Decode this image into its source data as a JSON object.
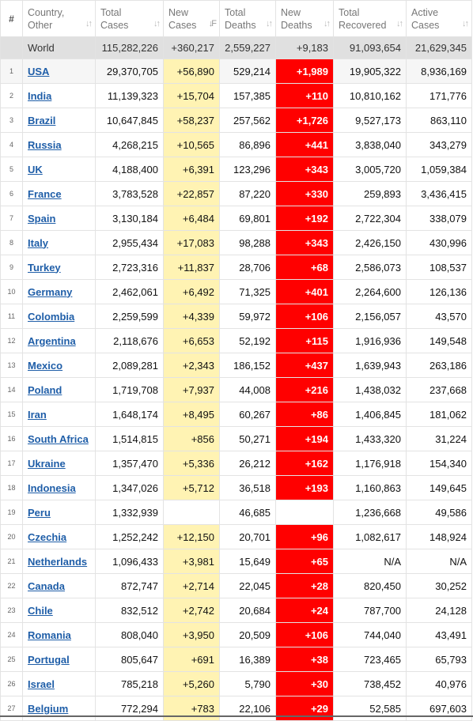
{
  "headers": {
    "hash": "#",
    "country": [
      "Country,",
      "Other"
    ],
    "total_cases": [
      "Total",
      "Cases"
    ],
    "new_cases": [
      "New",
      "Cases"
    ],
    "total_deaths": [
      "Total",
      "Deaths"
    ],
    "new_deaths": [
      "New",
      "Deaths"
    ],
    "total_recovered": [
      "Total",
      "Recovered"
    ],
    "active_cases": [
      "Active",
      "Cases"
    ]
  },
  "sort_icons": {
    "default": "↓↑",
    "active": "↓F"
  },
  "world": {
    "country": "World",
    "total_cases": "115,282,226",
    "new_cases": "+360,217",
    "total_deaths": "2,559,227",
    "new_deaths": "+9,183",
    "total_recovered": "91,093,654",
    "active_cases": "21,629,345"
  },
  "rows": [
    {
      "rank": "1",
      "country": "USA",
      "total_cases": "29,370,705",
      "new_cases": "+56,890",
      "total_deaths": "529,214",
      "new_deaths": "+1,989",
      "total_recovered": "19,905,322",
      "active_cases": "8,936,169"
    },
    {
      "rank": "2",
      "country": "India",
      "total_cases": "11,139,323",
      "new_cases": "+15,704",
      "total_deaths": "157,385",
      "new_deaths": "+110",
      "total_recovered": "10,810,162",
      "active_cases": "171,776"
    },
    {
      "rank": "3",
      "country": "Brazil",
      "total_cases": "10,647,845",
      "new_cases": "+58,237",
      "total_deaths": "257,562",
      "new_deaths": "+1,726",
      "total_recovered": "9,527,173",
      "active_cases": "863,110"
    },
    {
      "rank": "4",
      "country": "Russia",
      "total_cases": "4,268,215",
      "new_cases": "+10,565",
      "total_deaths": "86,896",
      "new_deaths": "+441",
      "total_recovered": "3,838,040",
      "active_cases": "343,279"
    },
    {
      "rank": "5",
      "country": "UK",
      "total_cases": "4,188,400",
      "new_cases": "+6,391",
      "total_deaths": "123,296",
      "new_deaths": "+343",
      "total_recovered": "3,005,720",
      "active_cases": "1,059,384"
    },
    {
      "rank": "6",
      "country": "France",
      "total_cases": "3,783,528",
      "new_cases": "+22,857",
      "total_deaths": "87,220",
      "new_deaths": "+330",
      "total_recovered": "259,893",
      "active_cases": "3,436,415"
    },
    {
      "rank": "7",
      "country": "Spain",
      "total_cases": "3,130,184",
      "new_cases": "+6,484",
      "total_deaths": "69,801",
      "new_deaths": "+192",
      "total_recovered": "2,722,304",
      "active_cases": "338,079"
    },
    {
      "rank": "8",
      "country": "Italy",
      "total_cases": "2,955,434",
      "new_cases": "+17,083",
      "total_deaths": "98,288",
      "new_deaths": "+343",
      "total_recovered": "2,426,150",
      "active_cases": "430,996"
    },
    {
      "rank": "9",
      "country": "Turkey",
      "total_cases": "2,723,316",
      "new_cases": "+11,837",
      "total_deaths": "28,706",
      "new_deaths": "+68",
      "total_recovered": "2,586,073",
      "active_cases": "108,537"
    },
    {
      "rank": "10",
      "country": "Germany",
      "total_cases": "2,462,061",
      "new_cases": "+6,492",
      "total_deaths": "71,325",
      "new_deaths": "+401",
      "total_recovered": "2,264,600",
      "active_cases": "126,136"
    },
    {
      "rank": "11",
      "country": "Colombia",
      "total_cases": "2,259,599",
      "new_cases": "+4,339",
      "total_deaths": "59,972",
      "new_deaths": "+106",
      "total_recovered": "2,156,057",
      "active_cases": "43,570"
    },
    {
      "rank": "12",
      "country": "Argentina",
      "total_cases": "2,118,676",
      "new_cases": "+6,653",
      "total_deaths": "52,192",
      "new_deaths": "+115",
      "total_recovered": "1,916,936",
      "active_cases": "149,548"
    },
    {
      "rank": "13",
      "country": "Mexico",
      "total_cases": "2,089,281",
      "new_cases": "+2,343",
      "total_deaths": "186,152",
      "new_deaths": "+437",
      "total_recovered": "1,639,943",
      "active_cases": "263,186"
    },
    {
      "rank": "14",
      "country": "Poland",
      "total_cases": "1,719,708",
      "new_cases": "+7,937",
      "total_deaths": "44,008",
      "new_deaths": "+216",
      "total_recovered": "1,438,032",
      "active_cases": "237,668"
    },
    {
      "rank": "15",
      "country": "Iran",
      "total_cases": "1,648,174",
      "new_cases": "+8,495",
      "total_deaths": "60,267",
      "new_deaths": "+86",
      "total_recovered": "1,406,845",
      "active_cases": "181,062"
    },
    {
      "rank": "16",
      "country": "South Africa",
      "total_cases": "1,514,815",
      "new_cases": "+856",
      "total_deaths": "50,271",
      "new_deaths": "+194",
      "total_recovered": "1,433,320",
      "active_cases": "31,224"
    },
    {
      "rank": "17",
      "country": "Ukraine",
      "total_cases": "1,357,470",
      "new_cases": "+5,336",
      "total_deaths": "26,212",
      "new_deaths": "+162",
      "total_recovered": "1,176,918",
      "active_cases": "154,340"
    },
    {
      "rank": "18",
      "country": "Indonesia",
      "total_cases": "1,347,026",
      "new_cases": "+5,712",
      "total_deaths": "36,518",
      "new_deaths": "+193",
      "total_recovered": "1,160,863",
      "active_cases": "149,645"
    },
    {
      "rank": "19",
      "country": "Peru",
      "total_cases": "1,332,939",
      "new_cases": "",
      "total_deaths": "46,685",
      "new_deaths": "",
      "total_recovered": "1,236,668",
      "active_cases": "49,586"
    },
    {
      "rank": "20",
      "country": "Czechia",
      "total_cases": "1,252,242",
      "new_cases": "+12,150",
      "total_deaths": "20,701",
      "new_deaths": "+96",
      "total_recovered": "1,082,617",
      "active_cases": "148,924"
    },
    {
      "rank": "21",
      "country": "Netherlands",
      "total_cases": "1,096,433",
      "new_cases": "+3,981",
      "total_deaths": "15,649",
      "new_deaths": "+65",
      "total_recovered": "N/A",
      "active_cases": "N/A"
    },
    {
      "rank": "22",
      "country": "Canada",
      "total_cases": "872,747",
      "new_cases": "+2,714",
      "total_deaths": "22,045",
      "new_deaths": "+28",
      "total_recovered": "820,450",
      "active_cases": "30,252"
    },
    {
      "rank": "23",
      "country": "Chile",
      "total_cases": "832,512",
      "new_cases": "+2,742",
      "total_deaths": "20,684",
      "new_deaths": "+24",
      "total_recovered": "787,700",
      "active_cases": "24,128"
    },
    {
      "rank": "24",
      "country": "Romania",
      "total_cases": "808,040",
      "new_cases": "+3,950",
      "total_deaths": "20,509",
      "new_deaths": "+106",
      "total_recovered": "744,040",
      "active_cases": "43,491"
    },
    {
      "rank": "25",
      "country": "Portugal",
      "total_cases": "805,647",
      "new_cases": "+691",
      "total_deaths": "16,389",
      "new_deaths": "+38",
      "total_recovered": "723,465",
      "active_cases": "65,793"
    },
    {
      "rank": "26",
      "country": "Israel",
      "total_cases": "785,218",
      "new_cases": "+5,260",
      "total_deaths": "5,790",
      "new_deaths": "+30",
      "total_recovered": "738,452",
      "active_cases": "40,976"
    },
    {
      "rank": "27",
      "country": "Belgium",
      "total_cases": "772,294",
      "new_cases": "+783",
      "total_deaths": "22,106",
      "new_deaths": "+29",
      "total_recovered": "52,585",
      "active_cases": "697,603"
    }
  ],
  "colors": {
    "new_cases_bg": "#fff3b3",
    "new_deaths_bg": "#ff0000",
    "world_bg": "#e0e0e0",
    "link": "#1f5ea8"
  }
}
